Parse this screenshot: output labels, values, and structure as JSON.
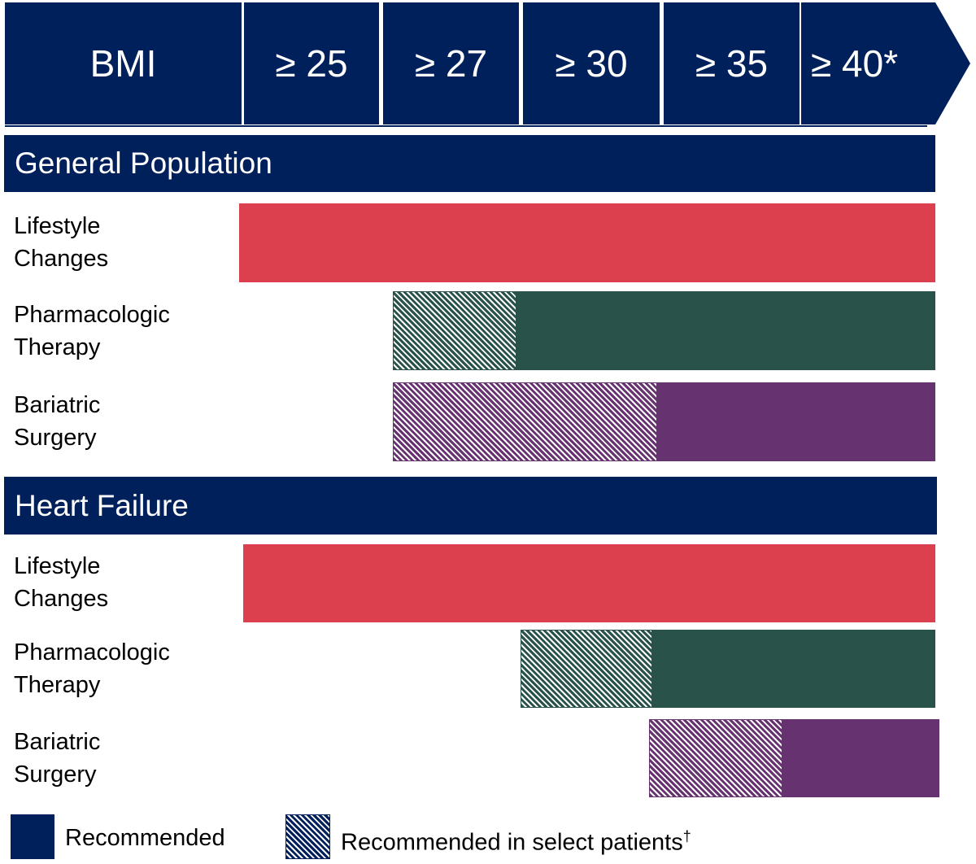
{
  "header": {
    "bmi_label": "BMI",
    "thresholds": [
      "≥ 25",
      "≥ 27",
      "≥ 30",
      "≥ 35",
      "≥ 40*"
    ]
  },
  "sections": [
    {
      "title": "General Population",
      "rows": [
        {
          "label_line1": "Lifestyle",
          "label_line2": "Changes",
          "recommended_in_select_from": null,
          "recommended_from": "≥ 25",
          "color": "#dc3f4d"
        },
        {
          "label_line1": "Pharmacologic",
          "label_line2": "Therapy",
          "recommended_in_select_from": "≥ 27",
          "recommended_from": "≥ 30",
          "color": "#29524a"
        },
        {
          "label_line1": "Bariatric",
          "label_line2": "Surgery",
          "recommended_in_select_from": "≥ 27",
          "recommended_from": "≥ 35",
          "color": "#663270"
        }
      ]
    },
    {
      "title": "Heart Failure",
      "rows": [
        {
          "label_line1": "Lifestyle",
          "label_line2": "Changes",
          "recommended_in_select_from": null,
          "recommended_from": "≥ 25",
          "color": "#dc3f4d"
        },
        {
          "label_line1": "Pharmacologic",
          "label_line2": "Therapy",
          "recommended_in_select_from": "≥ 30",
          "recommended_from": "≥ 35",
          "color": "#29524a"
        },
        {
          "label_line1": "Bariatric",
          "label_line2": "Surgery",
          "recommended_in_select_from": "≥ 35",
          "recommended_from": "≥ 40*",
          "color": "#663270"
        }
      ]
    }
  ],
  "legend": {
    "recommended": "Recommended",
    "select_patients": "Recommended in select patients",
    "select_patients_mark": "†"
  },
  "colors": {
    "navy": "#00205b",
    "lifestyle": "#dc3f4d",
    "pharmacologic": "#29524a",
    "bariatric": "#663270"
  }
}
